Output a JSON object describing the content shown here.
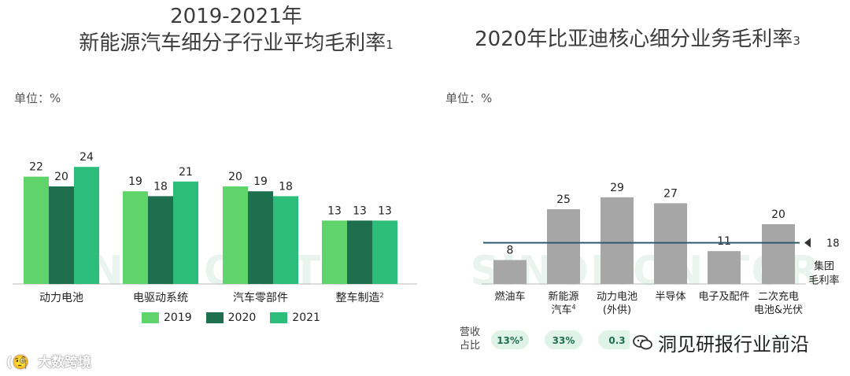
{
  "left": {
    "title_line1": "2019-2021年",
    "title_line2": "新能源汽车细分子行业平均毛利率",
    "title_sup": "1",
    "unit": "单位：%"
  },
  "right": {
    "title": "2020年比亚迪核心细分业务毛利率",
    "title_sup": "3",
    "unit": "单位：%",
    "revenue_label_line1": "营收",
    "revenue_label_line2": "占比"
  },
  "watermark_bg": "SINOMONITOR",
  "watermark_left": "大数跨境",
  "watermark_right": "洞见研报行业前沿",
  "colors": {
    "c2019": "#5fd46a",
    "c2020": "#1e6f4d",
    "c2021": "#2cbd7a",
    "gray_bar": "#a6a6a6",
    "ref_line": "#2e5b6e",
    "pill": "#dff3e9"
  },
  "chart_data": [
    {
      "type": "bar",
      "title": "2019-2021年新能源汽车细分子行业平均毛利率",
      "ylabel": "单位：%",
      "categories": [
        "动力电池",
        "电驱动系统",
        "汽车零部件",
        "整车制造"
      ],
      "category_sups": [
        "",
        "",
        "",
        "2"
      ],
      "series": [
        {
          "name": "2019",
          "values": [
            22,
            19,
            20,
            13
          ]
        },
        {
          "name": "2020",
          "values": [
            20,
            18,
            19,
            13
          ]
        },
        {
          "name": "2021",
          "values": [
            24,
            21,
            18,
            13
          ]
        }
      ],
      "ylim": [
        0,
        28
      ],
      "legend": "bottom"
    },
    {
      "type": "bar",
      "title": "2020年比亚迪核心细分业务毛利率",
      "ylabel": "单位：%",
      "categories": [
        {
          "line1": "燃油车",
          "line2": "",
          "sup": ""
        },
        {
          "line1": "新能源",
          "line2": "汽车",
          "sup": "4"
        },
        {
          "line1": "动力电池",
          "line2": "(外供)",
          "sup": ""
        },
        {
          "line1": "半导体",
          "line2": "",
          "sup": ""
        },
        {
          "line1": "电子及配件",
          "line2": "",
          "sup": ""
        },
        {
          "line1": "二次充电",
          "line2": "电池&光伏",
          "sup": ""
        }
      ],
      "values": [
        8,
        25,
        29,
        27,
        11,
        20
      ],
      "reference_line": {
        "value": 18,
        "label_line1": "集团",
        "label_line2": "毛利率"
      },
      "revenue_share": [
        {
          "text": "13%",
          "sup": "5"
        },
        {
          "text": "33%",
          "sup": ""
        },
        {
          "text": "0.3",
          "sup": ""
        },
        {
          "text": "",
          "sup": ""
        },
        {
          "text": "",
          "sup": ""
        },
        {
          "text": "",
          "sup": ""
        }
      ],
      "ylim": [
        0,
        40
      ]
    }
  ]
}
